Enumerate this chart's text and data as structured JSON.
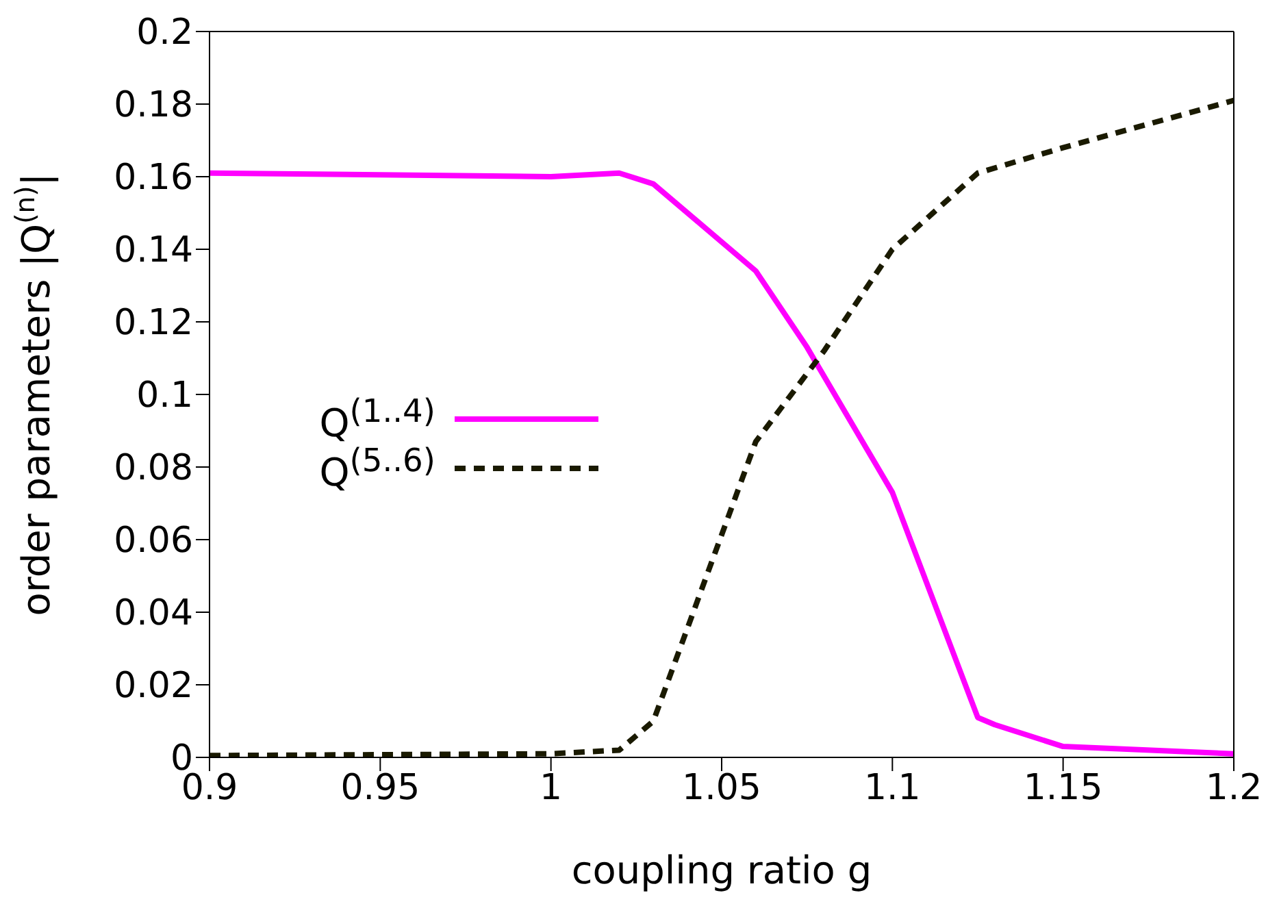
{
  "chart_data": {
    "type": "line",
    "xlabel": "coupling ratio g",
    "ylabel": "order parameters |Q$^{(n)}$|",
    "xlim": [
      0.9,
      1.2
    ],
    "xticks": [
      0.9,
      0.95,
      1,
      1.05,
      1.1,
      1.15,
      1.2
    ],
    "ylim": [
      0,
      0.2
    ],
    "yticks": [
      0,
      0.02,
      0.04,
      0.06,
      0.08,
      0.1,
      0.12,
      0.14,
      0.16,
      0.18,
      0.2
    ],
    "grid": false,
    "legend": "left",
    "marker": "none",
    "series": [
      {
        "name": "Q$^{(1..4)}$",
        "color": "#ff00ff",
        "line_style": "solid",
        "x": [
          0.9,
          1.0,
          1.02,
          1.03,
          1.06,
          1.075,
          1.1,
          1.125,
          1.13,
          1.15,
          1.2
        ],
        "values": [
          0.161,
          0.16,
          0.161,
          0.158,
          0.134,
          0.113,
          0.073,
          0.011,
          0.009,
          0.003,
          0.001
        ]
      },
      {
        "name": "Q$^{(5..6)}$",
        "color": "#1a1a00",
        "line_style": "dashed",
        "x": [
          0.9,
          1.0,
          1.02,
          1.03,
          1.06,
          1.08,
          1.1,
          1.125,
          1.15,
          1.2
        ],
        "values": [
          0.0005,
          0.001,
          0.002,
          0.01,
          0.087,
          0.112,
          0.14,
          0.161,
          0.168,
          0.181
        ]
      }
    ]
  }
}
